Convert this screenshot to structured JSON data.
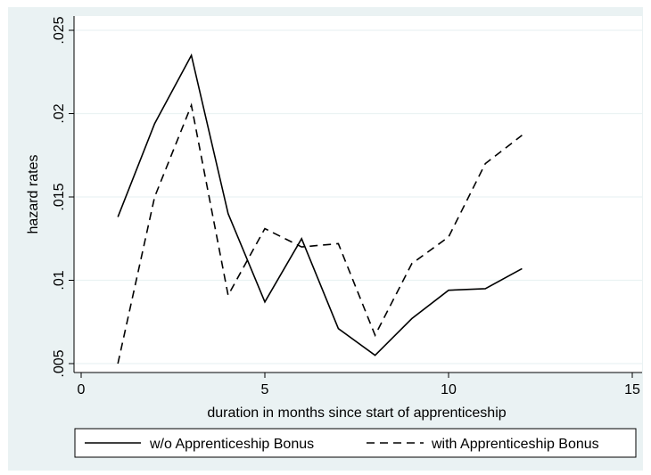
{
  "colors": {
    "outer_background": "#eaf2f3",
    "plot_background": "#ffffff",
    "gridline": "#eaf2f3",
    "line": "#000000"
  },
  "chart_data": {
    "type": "line",
    "title": "",
    "xlabel": "duration in months since start of apprenticeship",
    "ylabel": "hazard rates",
    "xlim": [
      0,
      15
    ],
    "ylim": [
      0.005,
      0.025
    ],
    "xticks": [
      0,
      5,
      10,
      15
    ],
    "xtick_labels": [
      "0",
      "5",
      "10",
      "15"
    ],
    "yticks": [
      0.005,
      0.01,
      0.015,
      0.02,
      0.025
    ],
    "ytick_labels": [
      ".005",
      ".01",
      ".015",
      ".02",
      ".025"
    ],
    "grid": "horizontal",
    "legend_position": "bottom",
    "series": [
      {
        "name": "w/o Apprenticeship Bonus",
        "style": "solid",
        "x": [
          1,
          2,
          3,
          4,
          5,
          6,
          7,
          8,
          9,
          10,
          11,
          12
        ],
        "y": [
          0.0138,
          0.0194,
          0.0235,
          0.014,
          0.0087,
          0.0125,
          0.0071,
          0.0055,
          0.0077,
          0.0094,
          0.0095,
          0.0107
        ]
      },
      {
        "name": "with Apprenticeship Bonus",
        "style": "dashed",
        "x": [
          1,
          2,
          3,
          4,
          5,
          6,
          7,
          8,
          9,
          10,
          11,
          12
        ],
        "y": [
          0.005,
          0.015,
          0.0205,
          0.0091,
          0.0131,
          0.012,
          0.0122,
          0.0067,
          0.011,
          0.0126,
          0.017,
          0.0187
        ]
      }
    ]
  }
}
